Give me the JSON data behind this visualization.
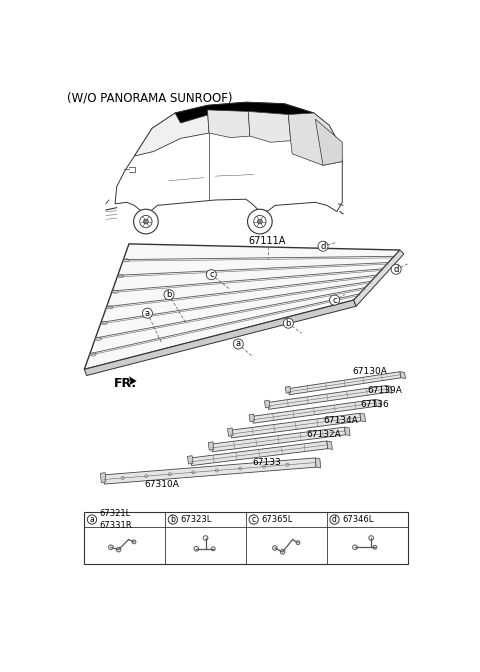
{
  "title": "(W/O PANORAMA SUNROOF)",
  "bg_color": "#ffffff",
  "part_numbers": {
    "main_panel": "67111A",
    "bracket_a1": "67321L",
    "bracket_a2": "67331R",
    "bracket_b": "67323L",
    "bracket_c": "67365L",
    "bracket_d": "67346L",
    "rail_67130A": "67130A",
    "rail_67139A": "67139A",
    "rail_67136": "67136",
    "rail_67134A": "67134A",
    "rail_67132A": "67132A",
    "rail_67133": "67133",
    "rail_67310A": "67310A"
  },
  "legend_labels": [
    "a",
    "b",
    "c",
    "d"
  ],
  "legend_parts": [
    "67321L\n67331R",
    "67323L",
    "67365L",
    "67346L"
  ],
  "fr_label": "FR.",
  "text_color": "#000000",
  "line_color": "#000000",
  "font_size_title": 8.5,
  "font_size_labels": 6.5,
  "font_size_partnums": 6.5
}
